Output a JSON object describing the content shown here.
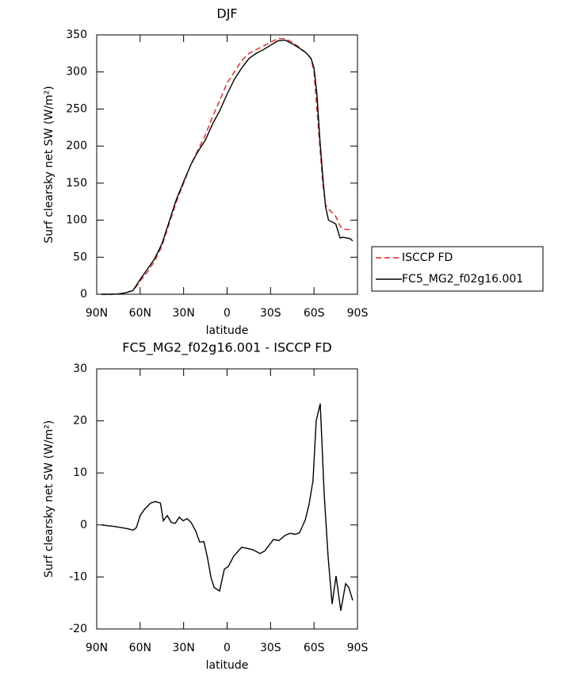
{
  "chart_data": [
    {
      "type": "line",
      "title": "DJF",
      "xlabel": "latitude",
      "ylabel": "Surf clearsky net SW (W/m²)",
      "x": [
        86.7,
        80,
        75,
        70,
        65,
        62,
        60,
        55,
        50,
        45,
        40,
        35,
        30,
        25,
        20,
        15,
        10,
        5,
        0,
        -5,
        -10,
        -15,
        -20,
        -25,
        -30,
        -35,
        -40,
        -45,
        -50,
        -55,
        -58,
        -60,
        -62,
        -64,
        -66,
        -68,
        -70,
        -75,
        -78,
        -80,
        -85,
        -86.7
      ],
      "series": [
        {
          "name": "ISCCP FD",
          "color": "#e8231f",
          "dash": "dashed",
          "values": [
            0,
            0,
            0.5,
            2,
            5,
            12,
            18,
            30,
            45,
            65,
            95,
            125,
            150,
            175,
            195,
            215,
            240,
            262,
            285,
            300,
            315,
            325,
            330,
            335,
            340,
            345,
            345,
            340,
            333,
            325,
            318,
            300,
            250,
            200,
            150,
            120,
            115,
            105,
            92,
            88,
            87,
            87
          ]
        },
        {
          "name": "FC5_MG2_f02g16.001",
          "color": "#000000",
          "dash": "solid",
          "values": [
            0,
            0,
            0.5,
            2,
            5,
            14,
            20,
            34,
            48,
            68,
            98,
            128,
            152,
            175,
            193,
            208,
            230,
            248,
            270,
            290,
            305,
            318,
            325,
            330,
            336,
            342,
            343,
            338,
            332,
            325,
            318,
            305,
            270,
            210,
            160,
            118,
            100,
            95,
            76,
            77,
            75,
            72
          ]
        }
      ],
      "xlim": [
        90,
        -90
      ],
      "xticks": [
        {
          "value": 90,
          "label": "90N"
        },
        {
          "value": 60,
          "label": "60N"
        },
        {
          "value": 30,
          "label": "30N"
        },
        0,
        {
          "value": -30,
          "label": "30S"
        },
        {
          "value": -60,
          "label": "60S"
        },
        {
          "value": -90,
          "label": "90S"
        }
      ],
      "ylim": [
        0,
        350
      ],
      "yticks": [
        0,
        50,
        100,
        150,
        200,
        250,
        300,
        350
      ],
      "legend": "outside right"
    },
    {
      "type": "line",
      "title": "FC5_MG2_f02g16.001 - ISCCP FD",
      "xlabel": "latitude",
      "ylabel": "Surf clearsky net SW (W/m²)",
      "x": [
        86.7,
        77.4,
        69,
        64.8,
        62.6,
        60,
        57,
        52.8,
        49.5,
        46,
        44,
        41.3,
        38.6,
        35.8,
        33,
        30.4,
        27.6,
        24.9,
        21.6,
        18.9,
        16,
        13.4,
        11.2,
        9,
        5.2,
        1.9,
        -0.8,
        -4.6,
        -10,
        -14,
        -18,
        -22.7,
        -26,
        -32,
        -35.8,
        -40,
        -43.5,
        -47,
        -50,
        -54,
        -56.6,
        -59.3,
        -61.5,
        -64.3,
        -67,
        -69.7,
        -72.5,
        -75.2,
        -78.5,
        -81.8,
        -84,
        -86.7
      ],
      "series": [
        {
          "name": "FC5_MG2_f02g16.001 - ISCCP FD",
          "color": "#000000",
          "dash": "solid",
          "values": [
            0,
            -0.3,
            -0.7,
            -1,
            -0.5,
            1.8,
            3,
            4.2,
            4.5,
            4.2,
            0.8,
            1.8,
            0.5,
            0.3,
            1.5,
            0.8,
            1.2,
            0.5,
            -1.2,
            -3.3,
            -3.2,
            -6.5,
            -10,
            -12,
            -12.7,
            -8.5,
            -8,
            -6,
            -4.3,
            -4.5,
            -4.8,
            -5.5,
            -5,
            -2.8,
            -3,
            -2,
            -1.6,
            -1.8,
            -1.5,
            1,
            4,
            8.5,
            20,
            23.3,
            6,
            -6,
            -15.2,
            -9.8,
            -16.5,
            -11.3,
            -12,
            -14.5
          ]
        }
      ],
      "xlim": [
        90,
        -90
      ],
      "xticks": [
        {
          "value": 90,
          "label": "90N"
        },
        {
          "value": 60,
          "label": "60N"
        },
        {
          "value": 30,
          "label": "30N"
        },
        0,
        {
          "value": -30,
          "label": "30S"
        },
        {
          "value": -60,
          "label": "60S"
        },
        {
          "value": -90,
          "label": "90S"
        }
      ],
      "ylim": [
        -20,
        30
      ],
      "yticks": [
        -20,
        -10,
        0,
        10,
        20,
        30
      ]
    }
  ]
}
